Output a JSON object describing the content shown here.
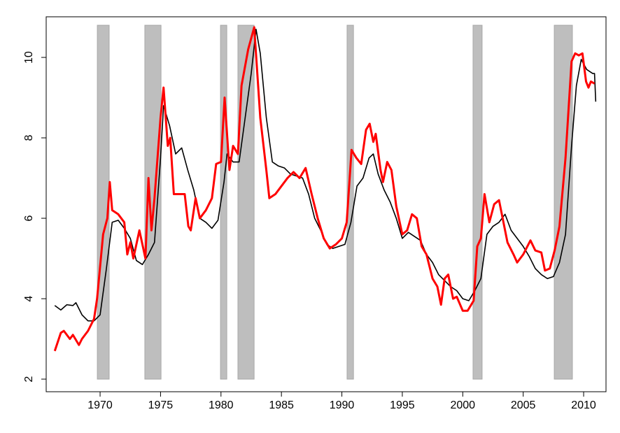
{
  "chart_data": {
    "type": "line",
    "xlim": [
      1965.54,
      2011.85
    ],
    "ylim": [
      1.687,
      11.01
    ],
    "xticks": [
      1970,
      1975,
      1980,
      1985,
      1990,
      1995,
      2000,
      2005,
      2010
    ],
    "yticks": [
      2,
      4,
      6,
      8,
      10
    ],
    "shading": {
      "color": "#bebebe",
      "range": [
        2,
        10.8
      ],
      "spans": [
        [
          1969.77,
          1970.75
        ],
        [
          1973.7,
          1975.04
        ],
        [
          1979.96,
          1980.48
        ],
        [
          1981.4,
          1982.74
        ],
        [
          1990.43,
          1990.96
        ],
        [
          2000.85,
          2001.6
        ],
        [
          2007.57,
          2009.07
        ]
      ]
    },
    "series": [
      {
        "color": "#000000",
        "x": [
          1966.25,
          1966.75,
          1967.25,
          1967.75,
          1968.0,
          1968.5,
          1969.0,
          1969.5,
          1970.0,
          1970.5,
          1971.0,
          1971.5,
          1972.0,
          1972.5,
          1973.0,
          1973.5,
          1974.0,
          1974.5,
          1975.0,
          1975.25,
          1975.75,
          1976.25,
          1976.75,
          1977.25,
          1977.75,
          1978.25,
          1978.75,
          1979.25,
          1979.75,
          1980.25,
          1980.5,
          1981.0,
          1981.5,
          1982.0,
          1982.5,
          1982.9,
          1983.25,
          1983.75,
          1984.25,
          1984.75,
          1985.25,
          1985.75,
          1986.25,
          1986.75,
          1987.25,
          1987.75,
          1988.25,
          1988.75,
          1989.25,
          1989.75,
          1990.25,
          1990.75,
          1991.25,
          1991.75,
          1992.25,
          1992.6,
          1993.0,
          1993.5,
          1994.0,
          1994.5,
          1995.0,
          1995.5,
          1996.0,
          1996.5,
          1997.0,
          1997.5,
          1998.0,
          1998.5,
          1999.0,
          1999.5,
          2000.0,
          2000.5,
          2001.0,
          2001.5,
          2002.0,
          2002.5,
          2003.0,
          2003.5,
          2004.0,
          2004.5,
          2005.0,
          2005.5,
          2006.0,
          2006.5,
          2007.0,
          2007.5,
          2008.0,
          2008.5,
          2009.0,
          2009.4,
          2009.8,
          2010.25,
          2010.75,
          2010.9,
          2011.0
        ],
        "values": [
          3.83,
          3.72,
          3.85,
          3.83,
          3.9,
          3.6,
          3.45,
          3.45,
          3.6,
          4.7,
          5.9,
          5.95,
          5.75,
          5.5,
          4.95,
          4.85,
          5.1,
          5.4,
          7.5,
          8.8,
          8.3,
          7.6,
          7.75,
          7.2,
          6.7,
          6.0,
          5.9,
          5.75,
          5.95,
          6.9,
          7.6,
          7.4,
          7.4,
          8.5,
          9.6,
          10.7,
          10.1,
          8.5,
          7.4,
          7.3,
          7.25,
          7.1,
          7.05,
          7.0,
          6.6,
          6.0,
          5.7,
          5.35,
          5.25,
          5.3,
          5.35,
          5.9,
          6.8,
          7.0,
          7.5,
          7.6,
          7.1,
          6.7,
          6.4,
          6.0,
          5.5,
          5.65,
          5.55,
          5.45,
          5.1,
          4.9,
          4.6,
          4.45,
          4.3,
          4.2,
          4.0,
          3.95,
          4.2,
          4.5,
          5.6,
          5.8,
          5.9,
          6.1,
          5.7,
          5.5,
          5.3,
          5.05,
          4.75,
          4.6,
          4.5,
          4.55,
          4.9,
          5.6,
          7.8,
          9.3,
          9.95,
          9.7,
          9.6,
          9.6,
          8.9
        ]
      },
      {
        "color": "#ff0000",
        "x": [
          1966.25,
          1966.75,
          1967.0,
          1967.5,
          1967.75,
          1968.25,
          1968.5,
          1969.0,
          1969.5,
          1969.75,
          1970.25,
          1970.6,
          1970.8,
          1971.0,
          1971.5,
          1972.0,
          1972.25,
          1972.5,
          1972.75,
          1973.25,
          1973.75,
          1974.0,
          1974.25,
          1974.5,
          1975.0,
          1975.25,
          1975.6,
          1975.8,
          1976.1,
          1976.5,
          1977.0,
          1977.3,
          1977.5,
          1977.9,
          1978.25,
          1978.75,
          1979.25,
          1979.6,
          1980.0,
          1980.3,
          1980.7,
          1981.0,
          1981.4,
          1981.7,
          1982.25,
          1982.75,
          1983.25,
          1983.75,
          1984.0,
          1984.5,
          1985.0,
          1985.5,
          1986.0,
          1986.5,
          1987.0,
          1987.5,
          1988.0,
          1988.5,
          1989.0,
          1989.5,
          1990.0,
          1990.4,
          1990.8,
          1991.2,
          1991.6,
          1992.0,
          1992.3,
          1992.6,
          1992.8,
          1993.2,
          1993.4,
          1993.75,
          1994.1,
          1994.5,
          1995.0,
          1995.4,
          1995.8,
          1996.2,
          1996.6,
          1997.0,
          1997.5,
          1997.9,
          1998.2,
          1998.5,
          1998.8,
          1999.2,
          1999.5,
          2000.0,
          2000.4,
          2000.9,
          2001.2,
          2001.5,
          2001.8,
          2002.2,
          2002.6,
          2003.0,
          2003.3,
          2003.7,
          2004.2,
          2004.5,
          2005.0,
          2005.6,
          2006.0,
          2006.5,
          2006.8,
          2007.2,
          2007.6,
          2008.0,
          2008.5,
          2009.0,
          2009.3,
          2009.6,
          2009.9,
          2010.2,
          2010.4,
          2010.6,
          2010.9
        ],
        "values": [
          2.7,
          3.15,
          3.2,
          3.0,
          3.1,
          2.85,
          3.0,
          3.2,
          3.5,
          4.0,
          5.6,
          6.0,
          6.9,
          6.2,
          6.1,
          5.9,
          5.1,
          5.4,
          5.0,
          5.7,
          5.0,
          7.0,
          5.7,
          6.5,
          8.5,
          9.25,
          7.8,
          8.0,
          6.6,
          6.6,
          6.6,
          5.8,
          5.7,
          6.5,
          6.0,
          6.2,
          6.5,
          7.35,
          7.4,
          9.0,
          7.2,
          7.8,
          7.6,
          9.3,
          10.2,
          10.75,
          8.5,
          7.2,
          6.5,
          6.6,
          6.8,
          7.0,
          7.15,
          7.0,
          7.25,
          6.6,
          6.0,
          5.5,
          5.25,
          5.35,
          5.5,
          5.9,
          7.7,
          7.5,
          7.35,
          8.2,
          8.35,
          7.9,
          8.1,
          7.2,
          6.9,
          7.4,
          7.2,
          6.3,
          5.6,
          5.7,
          6.1,
          6.0,
          5.3,
          5.1,
          4.5,
          4.3,
          3.85,
          4.5,
          4.6,
          4.0,
          4.05,
          3.7,
          3.7,
          3.95,
          5.3,
          5.5,
          6.6,
          5.9,
          6.35,
          6.45,
          6.0,
          5.4,
          5.1,
          4.9,
          5.1,
          5.45,
          5.2,
          5.15,
          4.7,
          4.75,
          5.2,
          5.8,
          7.5,
          9.9,
          10.1,
          10.05,
          10.1,
          9.4,
          9.25,
          9.4,
          9.35
        ]
      }
    ]
  }
}
